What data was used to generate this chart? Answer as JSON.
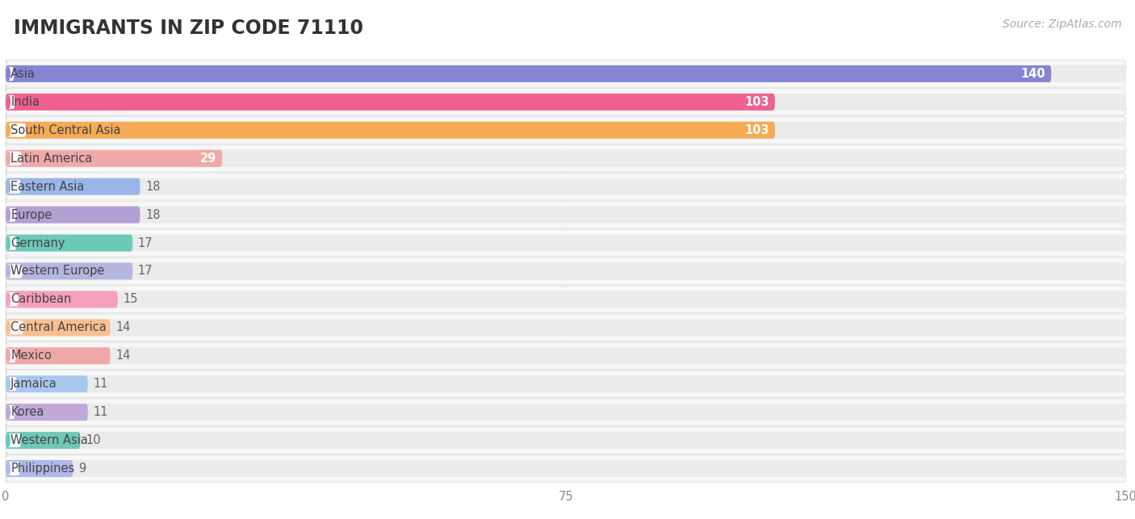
{
  "title": "IMMIGRANTS IN ZIP CODE 71110",
  "source": "Source: ZipAtlas.com",
  "categories": [
    "Asia",
    "India",
    "South Central Asia",
    "Latin America",
    "Eastern Asia",
    "Europe",
    "Germany",
    "Western Europe",
    "Caribbean",
    "Central America",
    "Mexico",
    "Jamaica",
    "Korea",
    "Western Asia",
    "Philippines"
  ],
  "values": [
    140,
    103,
    103,
    29,
    18,
    18,
    17,
    17,
    15,
    14,
    14,
    11,
    11,
    10,
    9
  ],
  "bar_colors": [
    "#8585d4",
    "#f0608e",
    "#f5aa55",
    "#f0a8a8",
    "#9ab5e8",
    "#b0a0d4",
    "#6ec8b8",
    "#b5b5e0",
    "#f5a0bc",
    "#f8c090",
    "#f0a8a8",
    "#a8c8f0",
    "#c0a8d8",
    "#6ec8b8",
    "#b0b8ea"
  ],
  "xlim": [
    0,
    150
  ],
  "xticks": [
    0,
    75,
    150
  ],
  "background_color": "#ffffff",
  "title_fontsize": 17,
  "label_fontsize": 10.5,
  "value_fontsize": 10.5
}
